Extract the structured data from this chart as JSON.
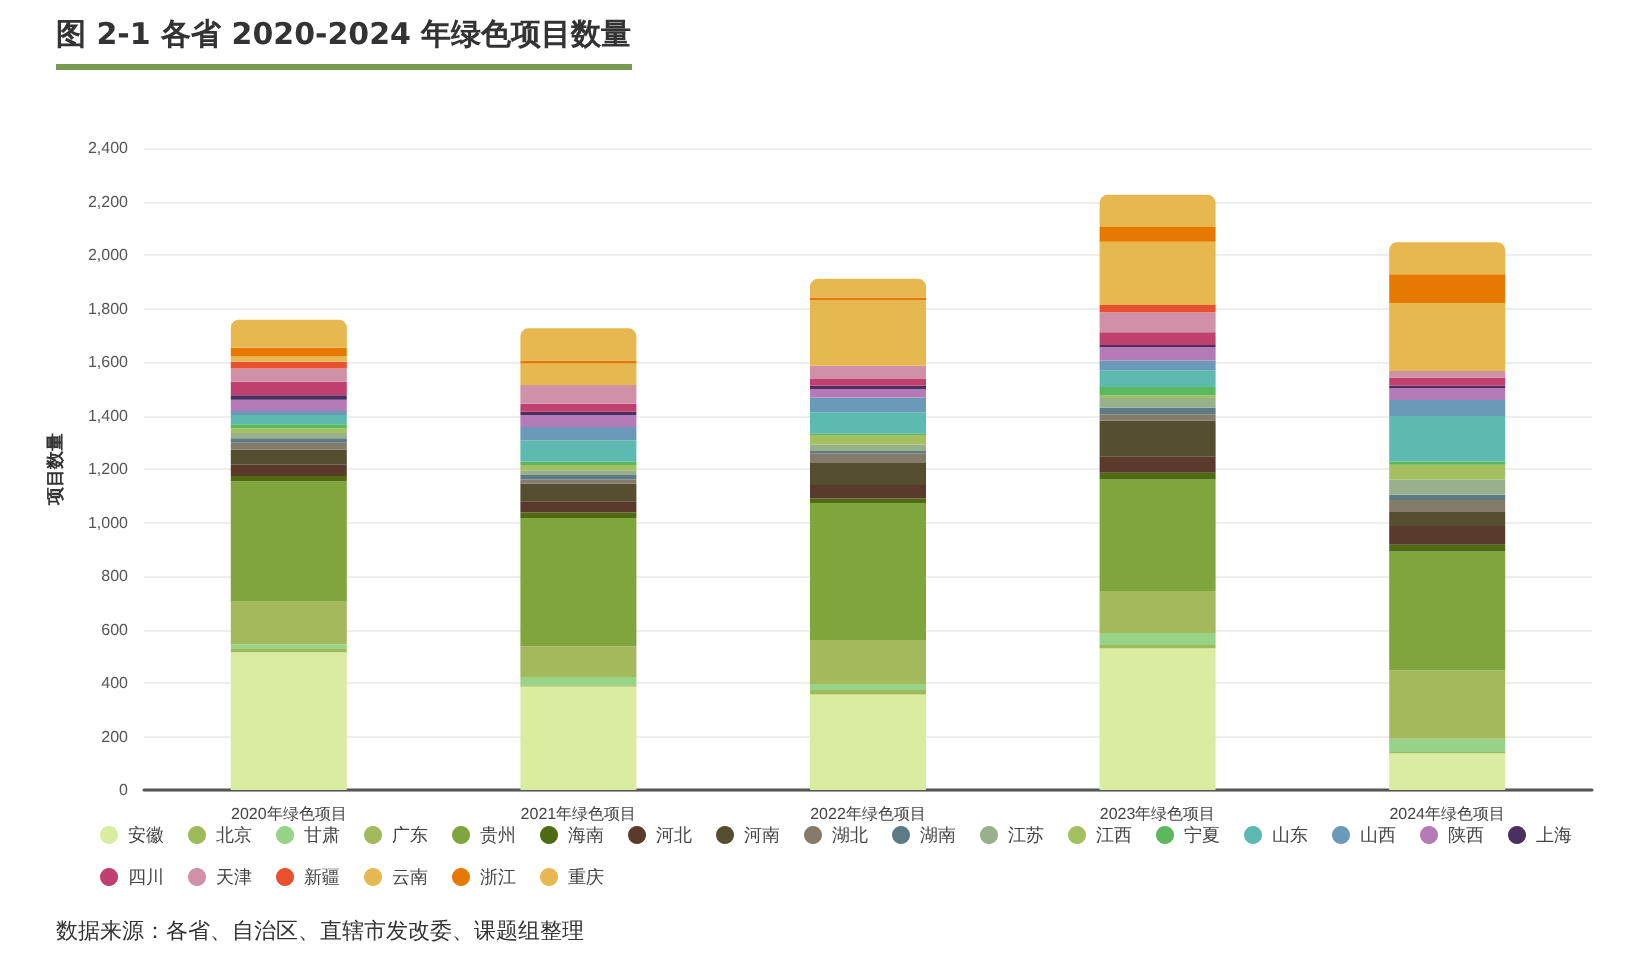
{
  "chart_data": {
    "type": "bar",
    "stacked": true,
    "title": "图 2-1 各省 2020-2024 年绿色项目数量",
    "ylabel": "项目数量",
    "categories": [
      "2020年绿色项目",
      "2021年绿色项目",
      "2022年绿色项目",
      "2023年绿色项目",
      "2024年绿色项目"
    ],
    "series": [
      {
        "name": "安徽",
        "color": "#d9eca0",
        "values": [
          515,
          387,
          357,
          530,
          137
        ]
      },
      {
        "name": "北京",
        "color": "#9fba5a",
        "values": [
          15,
          5,
          17,
          12,
          5
        ]
      },
      {
        "name": "甘肃",
        "color": "#98d488",
        "values": [
          15,
          30,
          22,
          45,
          50
        ]
      },
      {
        "name": "广东",
        "color": "#a3b95c",
        "values": [
          162,
          115,
          165,
          157,
          255
        ]
      },
      {
        "name": "贵州",
        "color": "#7fa53c",
        "values": [
          447,
          480,
          512,
          417,
          445
        ]
      },
      {
        "name": "海南",
        "color": "#4f6b12",
        "values": [
          20,
          20,
          17,
          25,
          25
        ]
      },
      {
        "name": "河北",
        "color": "#5a3a2a",
        "values": [
          42,
          42,
          50,
          62,
          70
        ]
      },
      {
        "name": "河南",
        "color": "#564e30",
        "values": [
          57,
          67,
          82,
          132,
          55
        ]
      },
      {
        "name": "湖北",
        "color": "#857b6a",
        "values": [
          25,
          15,
          37,
          25,
          42
        ]
      },
      {
        "name": "湖南",
        "color": "#5e7a85",
        "values": [
          17,
          17,
          8,
          25,
          20
        ]
      },
      {
        "name": "江苏",
        "color": "#98b08c",
        "values": [
          20,
          17,
          25,
          35,
          57
        ]
      },
      {
        "name": "江西",
        "color": "#a4c060",
        "values": [
          17,
          20,
          35,
          10,
          55
        ]
      },
      {
        "name": "宁夏",
        "color": "#5cb85c",
        "values": [
          15,
          12,
          5,
          32,
          12
        ]
      },
      {
        "name": "山东",
        "color": "#5cbab0",
        "values": [
          35,
          80,
          80,
          62,
          170
        ]
      },
      {
        "name": "山西",
        "color": "#6a9ab8",
        "values": [
          15,
          50,
          55,
          37,
          60
        ]
      },
      {
        "name": "陕西",
        "color": "#b57ab8",
        "values": [
          42,
          45,
          32,
          50,
          45
        ]
      },
      {
        "name": "上海",
        "color": "#4a3060",
        "values": [
          17,
          12,
          12,
          8,
          8
        ]
      },
      {
        "name": "四川",
        "color": "#c04070",
        "values": [
          50,
          30,
          25,
          47,
          30
        ]
      },
      {
        "name": "天津",
        "color": "#d090a8",
        "values": [
          50,
          70,
          50,
          75,
          25
        ]
      },
      {
        "name": "新疆",
        "color": "#e85030",
        "values": [
          25,
          0,
          0,
          27,
          0
        ]
      },
      {
        "name": "云南",
        "color": "#e6b850",
        "values": [
          20,
          80,
          245,
          237,
          255
        ]
      },
      {
        "name": "浙江",
        "color": "#e67a00",
        "values": [
          32,
          12,
          10,
          55,
          107
        ]
      },
      {
        "name": "重庆",
        "color": "#e8b850",
        "values": [
          105,
          120,
          70,
          120,
          120
        ]
      }
    ],
    "ylim": [
      0,
      2400
    ],
    "yticks": [
      {
        "value": 0,
        "label": "0"
      },
      {
        "value": 200,
        "label": "200"
      },
      {
        "value": 400,
        "label": "400"
      },
      {
        "value": 600,
        "label": "600"
      },
      {
        "value": 800,
        "label": "800"
      },
      {
        "value": 1000,
        "label": "1,000"
      },
      {
        "value": 1200,
        "label": "1,200"
      },
      {
        "value": 1400,
        "label": "1,400"
      },
      {
        "value": 1600,
        "label": "1,600"
      },
      {
        "value": 1800,
        "label": "1,800"
      },
      {
        "value": 2000,
        "label": "2,000"
      },
      {
        "value": 2200,
        "label": "2,200"
      },
      {
        "value": 2400,
        "label": "2,400"
      }
    ],
    "grid": "y",
    "legend": "bottom",
    "annotations": [
      "数据来源：各省、自治区、直辖市发改委、课题组整理"
    ]
  }
}
